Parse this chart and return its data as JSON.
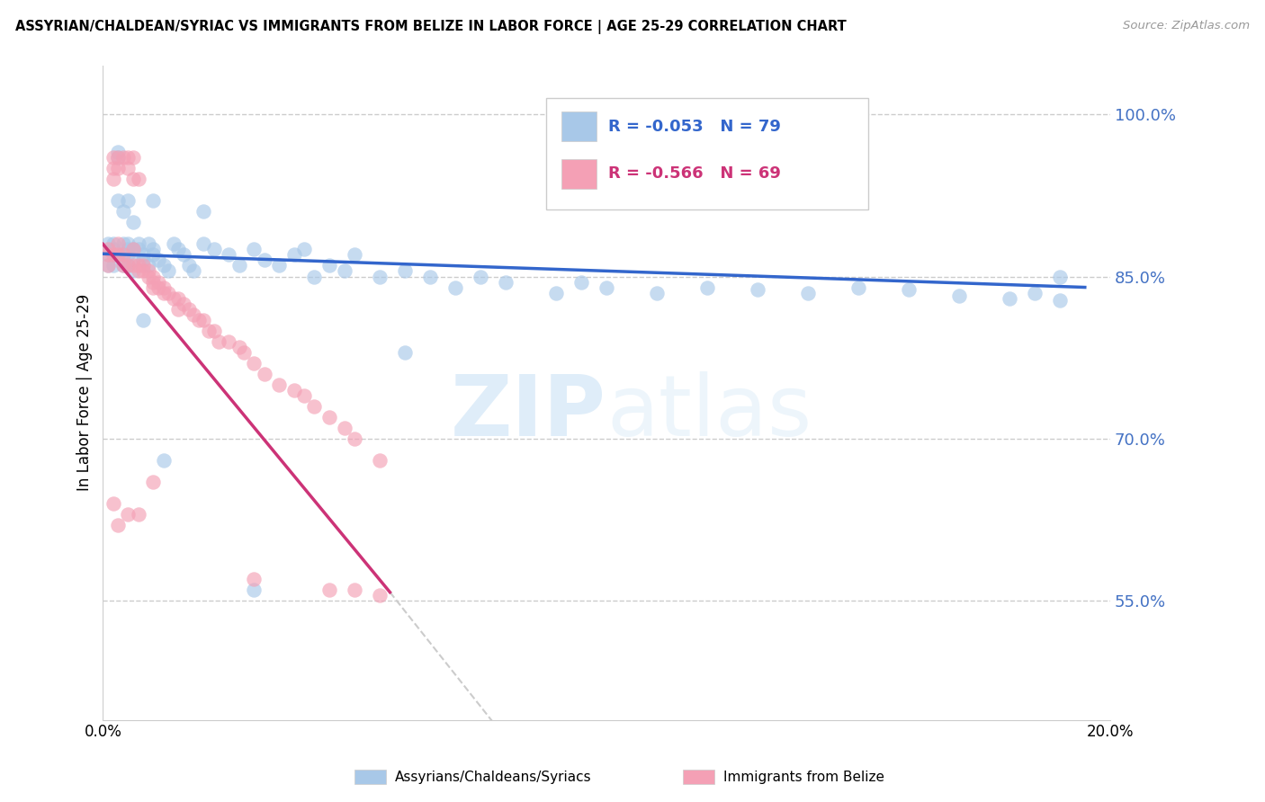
{
  "title": "ASSYRIAN/CHALDEAN/SYRIAC VS IMMIGRANTS FROM BELIZE IN LABOR FORCE | AGE 25-29 CORRELATION CHART",
  "source": "Source: ZipAtlas.com",
  "ylabel": "In Labor Force | Age 25-29",
  "ytick_labels": [
    "55.0%",
    "70.0%",
    "85.0%",
    "100.0%"
  ],
  "ytick_values": [
    0.55,
    0.7,
    0.85,
    1.0
  ],
  "legend_blue_r": "R = -0.053",
  "legend_blue_n": "N = 79",
  "legend_pink_r": "R = -0.566",
  "legend_pink_n": "N = 69",
  "legend_label_blue": "Assyrians/Chaldeans/Syriacs",
  "legend_label_pink": "Immigrants from Belize",
  "blue_color": "#a8c8e8",
  "pink_color": "#f4a0b5",
  "blue_line_color": "#3366cc",
  "pink_line_color": "#cc3377",
  "gray_line_color": "#cccccc",
  "watermark_zip": "ZIP",
  "watermark_atlas": "atlas",
  "xmin": 0.0,
  "xmax": 0.2,
  "ymin": 0.44,
  "ymax": 1.045,
  "blue_scatter_x": [
    0.001,
    0.001,
    0.001,
    0.002,
    0.002,
    0.002,
    0.002,
    0.003,
    0.003,
    0.003,
    0.004,
    0.004,
    0.004,
    0.005,
    0.005,
    0.005,
    0.005,
    0.006,
    0.006,
    0.006,
    0.007,
    0.007,
    0.008,
    0.008,
    0.009,
    0.009,
    0.01,
    0.01,
    0.011,
    0.012,
    0.013,
    0.014,
    0.015,
    0.016,
    0.017,
    0.018,
    0.02,
    0.022,
    0.025,
    0.027,
    0.03,
    0.032,
    0.035,
    0.038,
    0.04,
    0.042,
    0.045,
    0.048,
    0.05,
    0.055,
    0.06,
    0.065,
    0.07,
    0.075,
    0.08,
    0.09,
    0.095,
    0.1,
    0.11,
    0.12,
    0.13,
    0.14,
    0.15,
    0.16,
    0.17,
    0.18,
    0.185,
    0.19,
    0.003,
    0.004,
    0.005,
    0.006,
    0.008,
    0.01,
    0.012,
    0.02,
    0.03,
    0.06,
    0.19
  ],
  "blue_scatter_y": [
    0.87,
    0.88,
    0.86,
    0.88,
    0.87,
    0.86,
    0.875,
    0.965,
    0.96,
    0.87,
    0.88,
    0.87,
    0.86,
    0.88,
    0.875,
    0.87,
    0.86,
    0.875,
    0.865,
    0.855,
    0.88,
    0.875,
    0.87,
    0.865,
    0.86,
    0.88,
    0.875,
    0.87,
    0.865,
    0.86,
    0.855,
    0.88,
    0.875,
    0.87,
    0.86,
    0.855,
    0.88,
    0.875,
    0.87,
    0.86,
    0.875,
    0.865,
    0.86,
    0.87,
    0.875,
    0.85,
    0.86,
    0.855,
    0.87,
    0.85,
    0.855,
    0.85,
    0.84,
    0.85,
    0.845,
    0.835,
    0.845,
    0.84,
    0.835,
    0.84,
    0.838,
    0.835,
    0.84,
    0.838,
    0.832,
    0.83,
    0.835,
    0.828,
    0.92,
    0.91,
    0.92,
    0.9,
    0.81,
    0.92,
    0.68,
    0.91,
    0.56,
    0.78,
    0.85
  ],
  "pink_scatter_x": [
    0.001,
    0.001,
    0.001,
    0.002,
    0.002,
    0.002,
    0.002,
    0.003,
    0.003,
    0.003,
    0.003,
    0.004,
    0.004,
    0.004,
    0.005,
    0.005,
    0.005,
    0.006,
    0.006,
    0.006,
    0.006,
    0.007,
    0.007,
    0.007,
    0.008,
    0.008,
    0.009,
    0.009,
    0.01,
    0.01,
    0.01,
    0.011,
    0.011,
    0.012,
    0.012,
    0.013,
    0.014,
    0.015,
    0.015,
    0.016,
    0.017,
    0.018,
    0.019,
    0.02,
    0.021,
    0.022,
    0.023,
    0.025,
    0.027,
    0.028,
    0.03,
    0.032,
    0.035,
    0.038,
    0.04,
    0.042,
    0.045,
    0.048,
    0.05,
    0.055,
    0.002,
    0.003,
    0.005,
    0.007,
    0.01,
    0.03,
    0.045,
    0.05,
    0.055
  ],
  "pink_scatter_y": [
    0.875,
    0.87,
    0.86,
    0.96,
    0.95,
    0.94,
    0.87,
    0.96,
    0.95,
    0.88,
    0.87,
    0.96,
    0.87,
    0.86,
    0.96,
    0.95,
    0.86,
    0.96,
    0.94,
    0.875,
    0.86,
    0.94,
    0.86,
    0.855,
    0.86,
    0.855,
    0.855,
    0.85,
    0.85,
    0.845,
    0.84,
    0.845,
    0.84,
    0.84,
    0.835,
    0.835,
    0.83,
    0.83,
    0.82,
    0.825,
    0.82,
    0.815,
    0.81,
    0.81,
    0.8,
    0.8,
    0.79,
    0.79,
    0.785,
    0.78,
    0.77,
    0.76,
    0.75,
    0.745,
    0.74,
    0.73,
    0.72,
    0.71,
    0.7,
    0.68,
    0.64,
    0.62,
    0.63,
    0.63,
    0.66,
    0.57,
    0.56,
    0.56,
    0.555
  ],
  "blue_line_x": [
    0.0,
    0.195
  ],
  "blue_line_y": [
    0.871,
    0.84
  ],
  "pink_line_x": [
    0.0,
    0.057
  ],
  "pink_line_y": [
    0.88,
    0.558
  ],
  "gray_line_x": [
    0.057,
    0.135
  ],
  "gray_line_y": [
    0.558,
    0.1
  ]
}
